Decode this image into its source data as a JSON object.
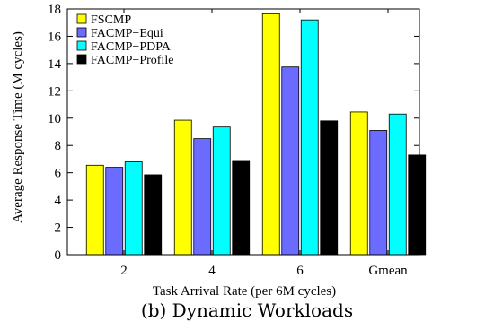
{
  "chart_data": {
    "type": "bar",
    "categories": [
      "2",
      "4",
      "6",
      "Gmean"
    ],
    "series": [
      {
        "name": "FSCMP",
        "color": "#ffff00",
        "values": [
          6.55,
          9.85,
          17.65,
          10.45
        ]
      },
      {
        "name": "FACMP−Equi",
        "color": "#6b6bff",
        "values": [
          6.4,
          8.5,
          13.75,
          9.1
        ]
      },
      {
        "name": "FACMP−PDPA",
        "color": "#00ffff",
        "values": [
          6.8,
          9.35,
          17.2,
          10.3
        ]
      },
      {
        "name": "FACMP−Profile",
        "color": "#000000",
        "values": [
          5.85,
          6.9,
          9.8,
          7.3
        ]
      }
    ],
    "xlabel": "Task Arrival Rate (per 6M cycles)",
    "ylabel": "Average Response Time (M cycles)",
    "ylim": [
      0,
      18
    ],
    "yticks": [
      0,
      2,
      4,
      6,
      8,
      10,
      12,
      14,
      16,
      18
    ],
    "legend": "top-left",
    "grid": false
  },
  "caption": "(b) Dynamic Workloads"
}
